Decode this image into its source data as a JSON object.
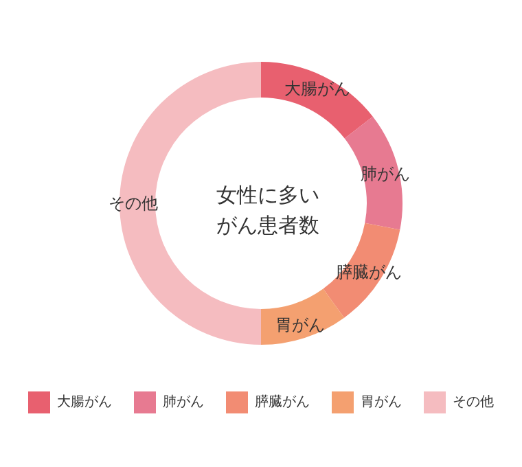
{
  "chart_data": {
    "type": "donut",
    "title": "女性に多いがん患者数",
    "categories": [
      "大腸がん",
      "肺がん",
      "膵臓がん",
      "胃がん",
      "その他"
    ],
    "values": [
      14.5,
      13.5,
      12,
      10,
      50
    ],
    "colors": [
      "#e8606f",
      "#e77a91",
      "#f28c73",
      "#f4a070",
      "#f5bcc0"
    ],
    "legend": "bottom"
  }
}
